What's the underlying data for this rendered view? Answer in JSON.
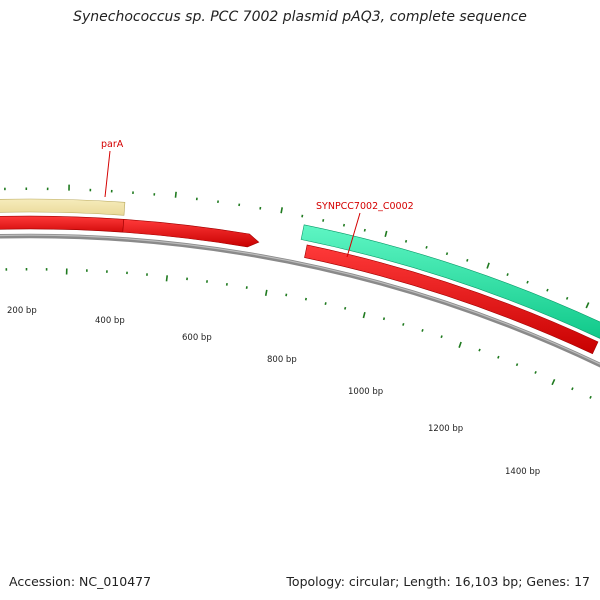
{
  "title": "Synechococcus sp. PCC 7002 plasmid pAQ3, complete sequence",
  "footer": {
    "accession": "Accession: NC_010477",
    "topology": "Topology: circular; Length: 16,103 bp; Genes: 17"
  },
  "genes": [
    {
      "label": "parA",
      "color": "#d40000"
    },
    {
      "label": "SYNPCC7002_C0002",
      "color": "#d40000"
    }
  ],
  "ticks": [
    "200 bp",
    "400 bp",
    "600 bp",
    "800 bp",
    "1000 bp",
    "1200 bp",
    "1400 bp"
  ],
  "colors": {
    "gene_feature": "#f0e3a2",
    "cds_feature": "#ee0000",
    "other_feature": "#2be8a8",
    "backbone": "#888888",
    "tick": "#1f7a1f",
    "label": "#d40000"
  }
}
